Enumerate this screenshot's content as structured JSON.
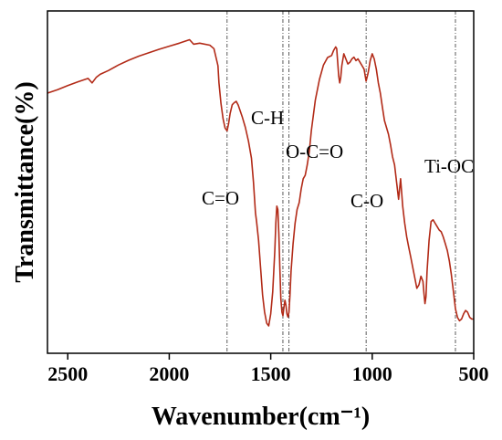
{
  "chart_data": {
    "type": "line",
    "title": "",
    "xlabel": "Wavenumber(cm⁻¹)",
    "ylabel": "Transmittance(%)",
    "xlim": [
      2600,
      500
    ],
    "x_reversed": true,
    "x_ticks": [
      2500,
      2000,
      1500,
      1000,
      500
    ],
    "y_ticks_shown": false,
    "grid": false,
    "line_color": "#b22a17",
    "reference_lines": [
      1715,
      1440,
      1410,
      1030,
      590
    ],
    "annotations": [
      {
        "text": "C=O",
        "x": 1715
      },
      {
        "text": "C-H",
        "x": 1440
      },
      {
        "text": "O-C=O",
        "x": 1410
      },
      {
        "text": "C-O",
        "x": 1030
      },
      {
        "text": "Ti-OC",
        "x": 590
      }
    ],
    "series": [
      {
        "x": [
          2600,
          2550,
          2500,
          2450,
          2400,
          2380,
          2360,
          2340,
          2300,
          2250,
          2200,
          2150,
          2100,
          2050,
          2000,
          1950,
          1900,
          1880,
          1850,
          1800,
          1780,
          1760,
          1755,
          1745,
          1735,
          1725,
          1715,
          1708,
          1700,
          1690,
          1680,
          1670,
          1660,
          1640,
          1625,
          1610,
          1595,
          1585,
          1575,
          1570,
          1560,
          1550,
          1540,
          1530,
          1520,
          1510,
          1500,
          1490,
          1480,
          1475,
          1470,
          1465,
          1460,
          1455,
          1450,
          1445,
          1440,
          1435,
          1430,
          1425,
          1420,
          1415,
          1410,
          1405,
          1400,
          1390,
          1380,
          1370,
          1360,
          1350,
          1340,
          1330,
          1320,
          1310,
          1300,
          1280,
          1260,
          1240,
          1220,
          1200,
          1190,
          1180,
          1175,
          1170,
          1165,
          1160,
          1155,
          1150,
          1140,
          1130,
          1120,
          1110,
          1100,
          1090,
          1080,
          1070,
          1060,
          1050,
          1040,
          1030,
          1020,
          1010,
          1000,
          990,
          980,
          970,
          960,
          950,
          940,
          930,
          920,
          910,
          900,
          890,
          880,
          870,
          860,
          850,
          840,
          830,
          820,
          810,
          800,
          790,
          780,
          770,
          760,
          750,
          745,
          740,
          735,
          730,
          720,
          710,
          700,
          690,
          680,
          670,
          660,
          650,
          640,
          630,
          620,
          610,
          600,
          590,
          580,
          570,
          560,
          550,
          540,
          530,
          520,
          510,
          500
        ],
        "y": [
          76.0,
          77.0,
          78.2,
          79.3,
          80.3,
          79.0,
          80.6,
          81.5,
          82.6,
          84.2,
          85.6,
          86.8,
          87.8,
          88.8,
          89.7,
          90.6,
          91.6,
          90.3,
          90.6,
          90.0,
          89.0,
          84.0,
          79.0,
          73.0,
          68.5,
          65.8,
          65.0,
          67.0,
          70.0,
          72.6,
          73.2,
          73.6,
          72.5,
          69.0,
          66.0,
          62.0,
          57.0,
          50.0,
          41.0,
          38.5,
          33.0,
          25.0,
          17.0,
          12.0,
          8.8,
          8.0,
          11.5,
          18.0,
          30.0,
          38.0,
          43.0,
          42.0,
          35.0,
          25.0,
          16.0,
          12.0,
          11.0,
          13.5,
          15.5,
          14.0,
          11.5,
          10.6,
          12.0,
          17.0,
          24.0,
          32.0,
          38.0,
          42.0,
          44.0,
          48.0,
          51.0,
          52.0,
          55.0,
          59.0,
          65.0,
          74.0,
          80.0,
          84.2,
          86.4,
          87.0,
          88.5,
          89.5,
          89.0,
          85.0,
          81.0,
          79.0,
          80.5,
          84.0,
          87.5,
          86.0,
          84.5,
          85.0,
          86.0,
          86.5,
          85.5,
          86.0,
          85.0,
          84.0,
          83.0,
          79.5,
          82.0,
          85.5,
          87.5,
          86.0,
          83.0,
          79.0,
          76.0,
          72.0,
          68.0,
          66.0,
          64.0,
          61.0,
          57.5,
          55.0,
          50.0,
          45.0,
          51.0,
          43.0,
          38.0,
          34.0,
          31.0,
          28.0,
          25.0,
          22.0,
          19.0,
          20.0,
          22.5,
          21.0,
          17.5,
          14.5,
          16.5,
          24.0,
          33.0,
          38.5,
          39.0,
          38.0,
          37.0,
          36.0,
          35.5,
          34.0,
          32.0,
          30.0,
          27.0,
          23.0,
          18.0,
          13.0,
          10.5,
          9.5,
          10.0,
          11.5,
          12.5,
          12.0,
          10.5,
          10.0,
          10.0
        ]
      }
    ]
  }
}
